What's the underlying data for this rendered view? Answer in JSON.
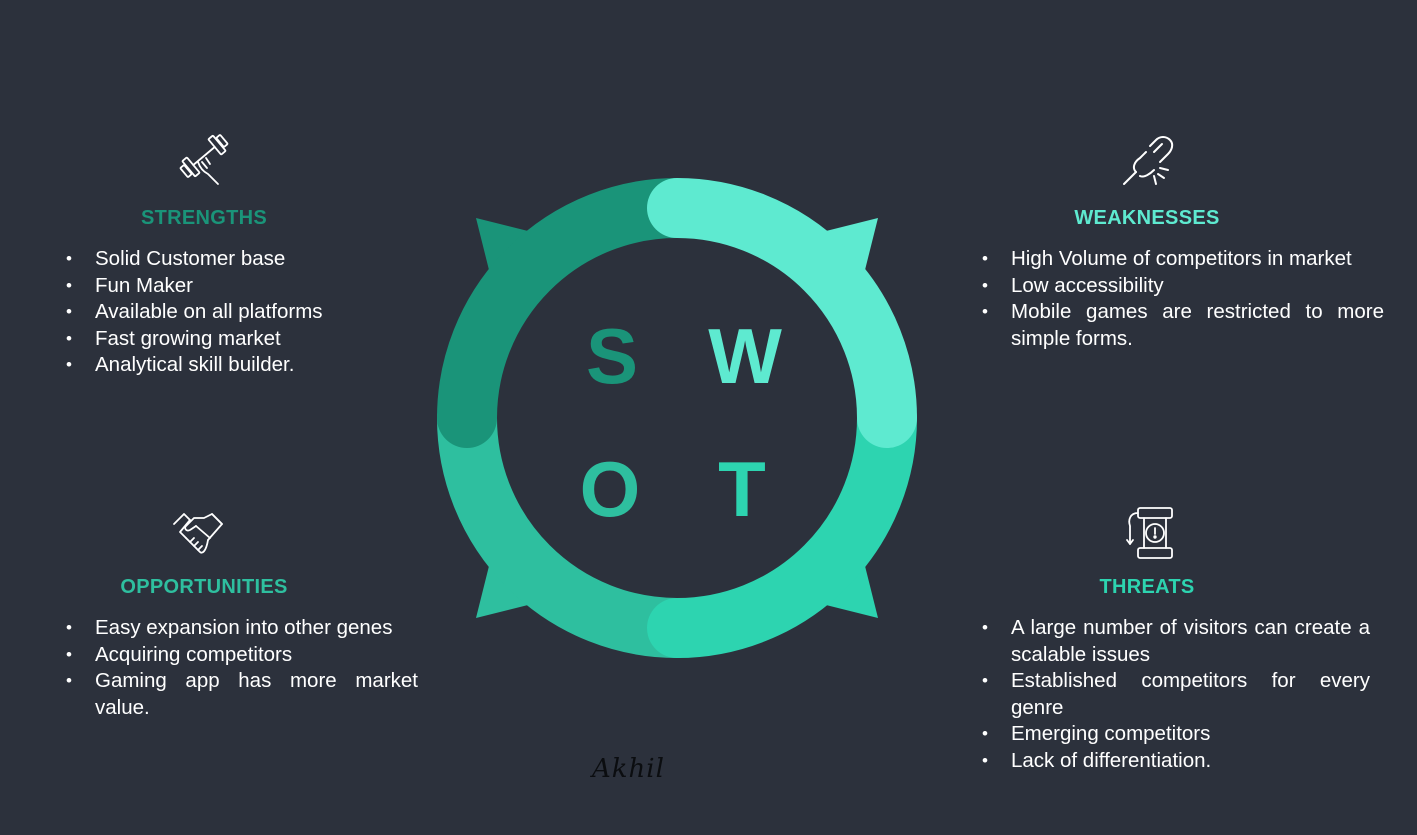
{
  "colors": {
    "background": "#2c313c",
    "strengths": "#1a9479",
    "weaknesses": "#5eead0",
    "threats": "#2dd4b0",
    "opportunities": "#2ebf9f",
    "text": "#ffffff"
  },
  "letters": {
    "s": "S",
    "w": "W",
    "o": "O",
    "t": "T"
  },
  "strengths": {
    "icon": "dumbbell-hand-icon",
    "title": "STRENGTHS",
    "items": [
      "Solid Customer base",
      "Fun Maker",
      "Available on all platforms",
      "Fast growing market",
      "Analytical skill builder."
    ]
  },
  "weaknesses": {
    "icon": "broken-chain-icon",
    "title": "WEAKNESSES",
    "items": [
      "High Volume of competitors in market",
      "Low accessibility",
      "Mobile games are restricted to more simple forms."
    ]
  },
  "opportunities": {
    "icon": "handshake-icon",
    "title": "OPPORTUNITIES",
    "items": [
      "Easy expansion into other genes",
      "Acquiring competitors",
      "Gaming app has more market value."
    ]
  },
  "threats": {
    "icon": "bomb-icon",
    "title": "THREATS",
    "items": [
      "A large number of visitors can create a scalable issues",
      "Established competitors for every genre",
      "Emerging competitors",
      "Lack of differentiation."
    ]
  },
  "signature": "Akhil"
}
